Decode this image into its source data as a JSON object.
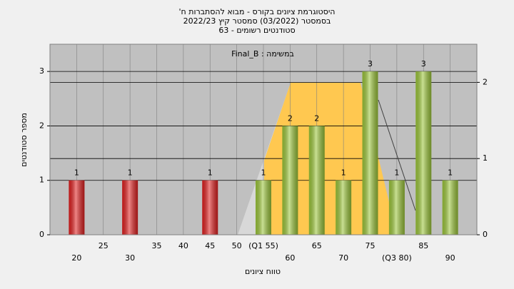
{
  "chart_data": {
    "type": "bar",
    "title": "היסטוגרמת ציונים בקורס - מבוא להסתברות ח'",
    "subtitle": "בסמסטר (03/2022) סמסטר קיץ 2022/23",
    "subtitle2": "סטודנטים רשומים - 63",
    "annotation": "במשימה : Final_B",
    "y_label": "מספר סטודנטים",
    "x_label": "טווח ציונים",
    "x": [
      20,
      30,
      45,
      55,
      60,
      65,
      70,
      75,
      80,
      85,
      90
    ],
    "values": [
      1,
      1,
      1,
      1,
      2,
      2,
      1,
      3,
      1,
      3,
      1
    ],
    "colors": [
      "#e02020",
      "#e02020",
      "#e02020",
      "#9cc63a",
      "#9cc63a",
      "#9cc63a",
      "#9cc63a",
      "#9cc63a",
      "#9cc63a",
      "#9cc63a",
      "#9cc63a"
    ],
    "xlim": [
      15,
      95
    ],
    "xticks": [
      20,
      25,
      30,
      35,
      40,
      45,
      50,
      {
        "value": 55,
        "label": "(Q1 55)"
      },
      60,
      65,
      70,
      75,
      {
        "value": 80,
        "label": "(Q3 80)"
      },
      85,
      90
    ],
    "ylim": [
      0,
      3.5
    ],
    "yticks": [
      0,
      1,
      2,
      3
    ],
    "y2lim": [
      0,
      2.5
    ],
    "y2ticks": [
      0,
      1,
      2
    ],
    "grid": true
  }
}
